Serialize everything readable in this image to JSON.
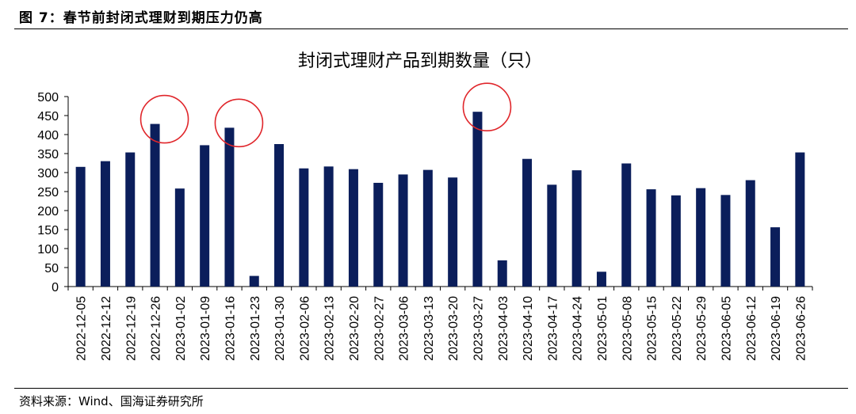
{
  "figure_title": "图 7：春节前封闭式理财到期压力仍高",
  "source": "资料来源：Wind、国海证券研究所",
  "colors": {
    "bar": "#0b1e5b",
    "highlight": "#e0262b"
  },
  "chart_data": {
    "type": "bar",
    "title": "封闭式理财产品到期数量（只）",
    "xlabel": "",
    "ylabel": "",
    "ylim": [
      0,
      500
    ],
    "yticks": [
      0,
      50,
      100,
      150,
      200,
      250,
      300,
      350,
      400,
      450,
      500
    ],
    "grid": false,
    "categories": [
      "2022-12-05",
      "2022-12-12",
      "2022-12-19",
      "2022-12-26",
      "2023-01-02",
      "2023-01-09",
      "2023-01-16",
      "2023-01-23",
      "2023-01-30",
      "2023-02-06",
      "2023-02-13",
      "2023-02-20",
      "2023-02-27",
      "2023-03-06",
      "2023-03-13",
      "2023-03-20",
      "2023-03-27",
      "2023-04-03",
      "2023-04-10",
      "2023-04-17",
      "2023-04-24",
      "2023-05-01",
      "2023-05-08",
      "2023-05-15",
      "2023-05-22",
      "2023-05-29",
      "2023-06-05",
      "2023-06-12",
      "2023-06-19",
      "2023-06-26"
    ],
    "values": [
      315,
      330,
      353,
      428,
      258,
      372,
      418,
      28,
      375,
      311,
      316,
      309,
      273,
      295,
      307,
      287,
      460,
      69,
      336,
      268,
      306,
      39,
      324,
      256,
      240,
      259,
      241,
      280,
      156,
      353
    ],
    "highlighted": [
      "2022-12-26",
      "2023-01-16",
      "2023-03-27"
    ]
  }
}
